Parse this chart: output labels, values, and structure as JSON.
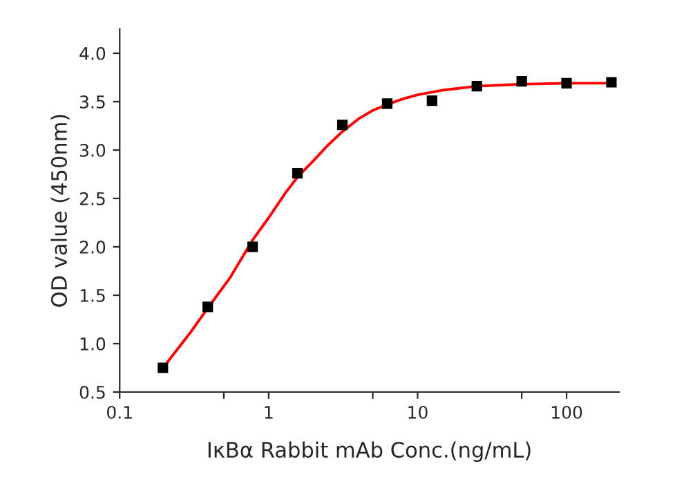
{
  "chart_data": {
    "type": "scatter",
    "xlabel": "IκBα Rabbit mAb Conc.(ng/mL)",
    "ylabel": "OD value (450nm)",
    "log": "x",
    "xlim": [
      0.1,
      225
    ],
    "xticks": [
      0.1,
      {
        "value": 0.5,
        "label": null
      },
      1,
      {
        "value": 5,
        "label": null
      },
      10,
      {
        "value": 50,
        "label": null
      },
      100
    ],
    "ylim": [
      0.5,
      4.25
    ],
    "yticks": [
      0.5,
      {
        "value": 1,
        "label": "1.0"
      },
      1.5,
      {
        "value": 2,
        "label": "2.0"
      },
      2.5,
      {
        "value": 3,
        "label": "3.0"
      },
      3.5,
      {
        "value": 4,
        "label": "4.0"
      }
    ],
    "grid": false,
    "legend": false,
    "series": [
      {
        "color": "#000000",
        "marker": "square",
        "x": [
          0.195,
          0.39,
          0.78,
          1.56,
          3.125,
          6.25,
          12.5,
          25,
          50,
          100,
          200
        ],
        "values": [
          0.75,
          1.38,
          2.0,
          2.76,
          3.26,
          3.48,
          3.51,
          3.66,
          3.71,
          3.69,
          3.7
        ]
      },
      {
        "type": "line",
        "color": "#ff0000",
        "marker": "none",
        "line_style": "solid",
        "x": [
          0.2,
          0.3,
          0.4,
          0.55,
          0.78,
          1,
          1.3,
          1.56,
          2,
          2.5,
          3.125,
          4,
          5,
          6.25,
          8,
          10,
          15,
          25,
          50,
          100,
          200
        ],
        "values": [
          0.77,
          1.12,
          1.39,
          1.68,
          2.07,
          2.3,
          2.56,
          2.72,
          2.89,
          3.05,
          3.19,
          3.32,
          3.41,
          3.47,
          3.53,
          3.57,
          3.62,
          3.66,
          3.68,
          3.69,
          3.69
        ]
      }
    ]
  }
}
